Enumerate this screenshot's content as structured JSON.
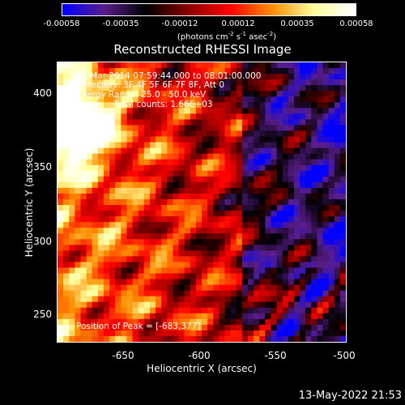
{
  "colorbar": {
    "ticks": [
      "-0.00058",
      "-0.00035",
      "-0.00012",
      "0.00012",
      "0.00035",
      "0.00058"
    ],
    "unit_prefix": "(photons cm",
    "unit_exp1": "-2",
    "unit_mid1": " s",
    "unit_exp2": "-1",
    "unit_mid2": " asec",
    "unit_exp3": "-2",
    "unit_suffix": ")"
  },
  "chart_data": {
    "type": "heatmap",
    "title": "Reconstructed RHESSI Image",
    "xlabel": "Heliocentric X (arcsec)",
    "ylabel": "Heliocentric Y (arcsec)",
    "xlim": [
      -689,
      -499
    ],
    "ylim": [
      231,
      424
    ],
    "x_ticks": [
      "-650",
      "-600",
      "-550",
      "-500"
    ],
    "x_tick_values": [
      -650,
      -600,
      -550,
      -500
    ],
    "y_ticks": [
      "250",
      "300",
      "350",
      "400"
    ],
    "y_tick_values": [
      250,
      300,
      350,
      400
    ],
    "color_range": [
      -0.00058,
      0.00058
    ],
    "colormap": [
      "#0000ff",
      "#5a1e8c",
      "#000000",
      "#8c0000",
      "#ff0000",
      "#ff8c00",
      "#ffff9a",
      "#ffffff"
    ],
    "annotations": {
      "time_range": "16-Mar-2014 07:59:44.000 to 08:01:00.000",
      "detectors": "Detectors: 3F 4F 5F 6F 7F 8F, Att 0",
      "energy": "Energy Range: 25.0 - 50.0 keV",
      "method": "Clean     Total counts: 1.66E+03",
      "peak": "Position of Peak = [-683,377]"
    },
    "peak_position": [
      -683,
      377
    ]
  },
  "timestamp": "13-May-2022 21:53"
}
